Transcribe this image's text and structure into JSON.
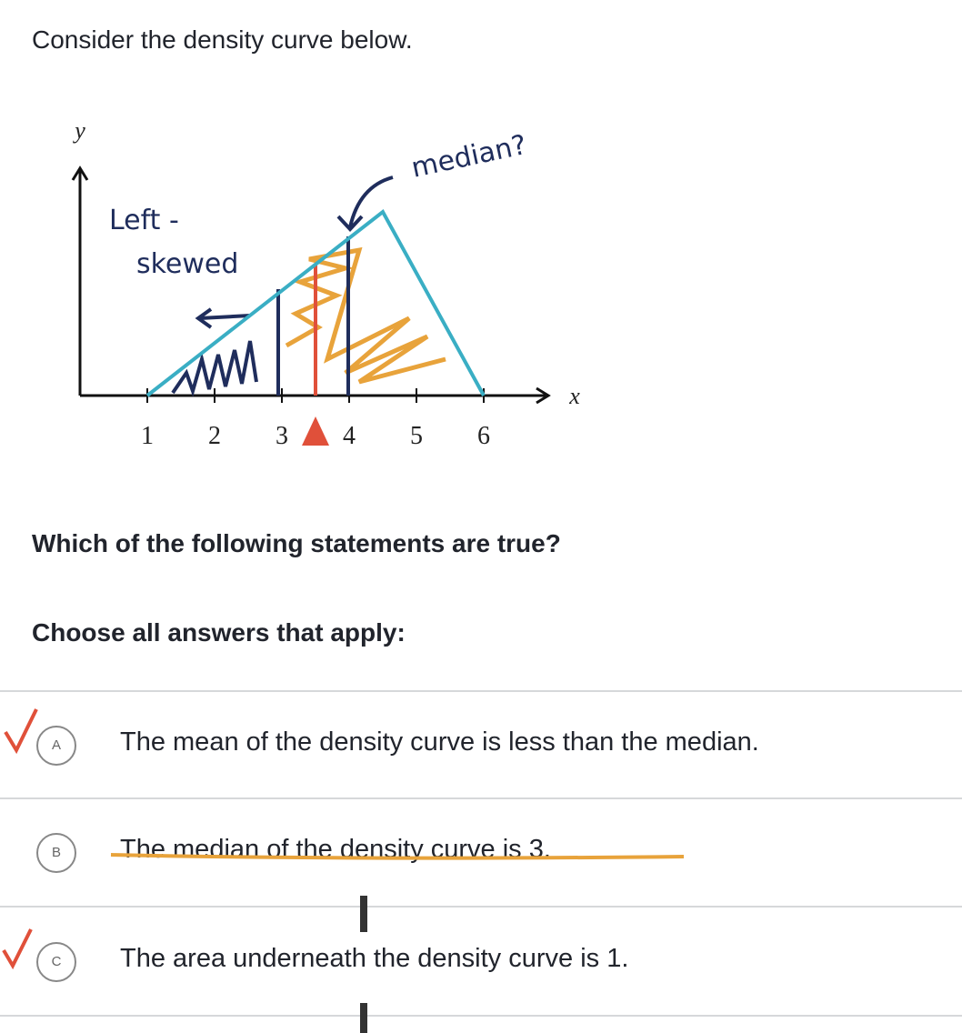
{
  "prompt": "Consider the density curve below.",
  "figure": {
    "type": "line",
    "x_label": "x",
    "y_label": "y",
    "xlim": [
      0,
      7
    ],
    "ylim": [
      0,
      0.5
    ],
    "xticks": [
      1,
      2,
      3,
      4,
      5,
      6
    ],
    "curve": {
      "x": [
        1,
        4.5,
        6
      ],
      "y": [
        0,
        0.4,
        0
      ],
      "color": "#3aaec4"
    },
    "annotations": [
      "Left -",
      "skewed",
      "median?"
    ]
  },
  "question": "Which of the following statements are true?",
  "instruction": "Choose all answers that apply:",
  "choices": [
    {
      "letter": "A",
      "text": "The mean of the density curve is less than the median."
    },
    {
      "letter": "B",
      "text": "The median of the density curve is 3."
    },
    {
      "letter": "C",
      "text": "The area underneath the density curve is 1."
    }
  ]
}
